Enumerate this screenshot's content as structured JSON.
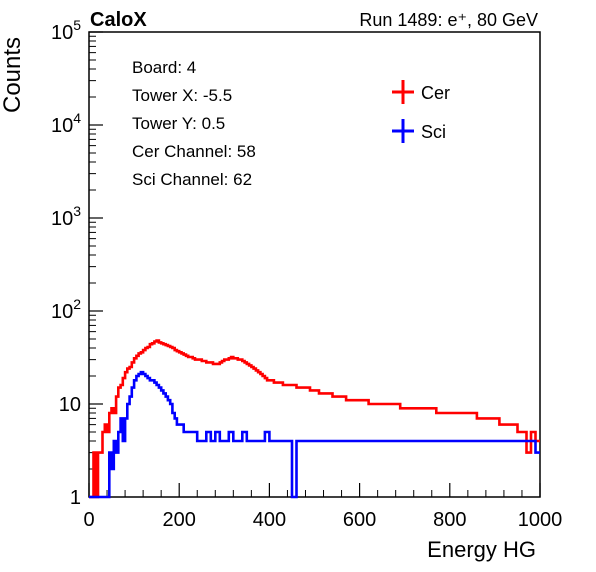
{
  "chart_data": {
    "type": "line",
    "title_left": "CaloX",
    "title_right": "Run 1489: e⁺, 80 GeV",
    "xlabel": "Energy HG",
    "ylabel": "Counts",
    "xlim": [
      0,
      1000
    ],
    "ylim": [
      1,
      100000
    ],
    "y_scale": "log",
    "x_ticks": [
      0,
      200,
      400,
      600,
      800,
      1000
    ],
    "x_tick_labels": [
      "0",
      "200",
      "400",
      "600",
      "800",
      "1000"
    ],
    "y_ticks": [
      1,
      10,
      100,
      1000,
      10000,
      100000
    ],
    "y_tick_labels": [
      {
        "base": "1",
        "exp": ""
      },
      {
        "base": "10",
        "exp": ""
      },
      {
        "base": "10",
        "exp": "2"
      },
      {
        "base": "10",
        "exp": "3"
      },
      {
        "base": "10",
        "exp": "4"
      },
      {
        "base": "10",
        "exp": "5"
      }
    ],
    "info_lines": [
      "Board: 4",
      "Tower X: -5.5",
      "Tower Y: 0.5",
      "Cer Channel: 58",
      "Sci Channel: 62"
    ],
    "legend_position": "top-right",
    "grid": false,
    "series": [
      {
        "name": "Cer",
        "color": "#ff0000",
        "points": [
          [
            0,
            1
          ],
          [
            5,
            1
          ],
          [
            10,
            3
          ],
          [
            15,
            1
          ],
          [
            20,
            3
          ],
          [
            25,
            3
          ],
          [
            30,
            5
          ],
          [
            35,
            6
          ],
          [
            40,
            5
          ],
          [
            45,
            8
          ],
          [
            50,
            9
          ],
          [
            55,
            8
          ],
          [
            60,
            12
          ],
          [
            65,
            15
          ],
          [
            70,
            16
          ],
          [
            75,
            19
          ],
          [
            80,
            22
          ],
          [
            85,
            24
          ],
          [
            90,
            25
          ],
          [
            95,
            28
          ],
          [
            100,
            31
          ],
          [
            105,
            33
          ],
          [
            110,
            35
          ],
          [
            115,
            36
          ],
          [
            120,
            38
          ],
          [
            125,
            40
          ],
          [
            130,
            41
          ],
          [
            135,
            44
          ],
          [
            140,
            45
          ],
          [
            145,
            47
          ],
          [
            150,
            48
          ],
          [
            155,
            46
          ],
          [
            160,
            45
          ],
          [
            165,
            44
          ],
          [
            170,
            43
          ],
          [
            175,
            42
          ],
          [
            180,
            41
          ],
          [
            185,
            40
          ],
          [
            190,
            38
          ],
          [
            195,
            37
          ],
          [
            200,
            36
          ],
          [
            205,
            35
          ],
          [
            210,
            34
          ],
          [
            215,
            33
          ],
          [
            220,
            32
          ],
          [
            225,
            32
          ],
          [
            230,
            31
          ],
          [
            235,
            30
          ],
          [
            240,
            30
          ],
          [
            245,
            30
          ],
          [
            250,
            29
          ],
          [
            255,
            29
          ],
          [
            260,
            28
          ],
          [
            265,
            28
          ],
          [
            270,
            28
          ],
          [
            275,
            27
          ],
          [
            280,
            27
          ],
          [
            285,
            27
          ],
          [
            290,
            28
          ],
          [
            295,
            29
          ],
          [
            300,
            30
          ],
          [
            305,
            30
          ],
          [
            310,
            31
          ],
          [
            315,
            32
          ],
          [
            320,
            31
          ],
          [
            325,
            31
          ],
          [
            330,
            30
          ],
          [
            335,
            30
          ],
          [
            340,
            29
          ],
          [
            345,
            28
          ],
          [
            350,
            27
          ],
          [
            355,
            26
          ],
          [
            360,
            25
          ],
          [
            365,
            24
          ],
          [
            370,
            23
          ],
          [
            375,
            22
          ],
          [
            380,
            21
          ],
          [
            385,
            20
          ],
          [
            390,
            19
          ],
          [
            395,
            18
          ],
          [
            400,
            18
          ],
          [
            410,
            17
          ],
          [
            420,
            17
          ],
          [
            430,
            16
          ],
          [
            440,
            16
          ],
          [
            450,
            16
          ],
          [
            460,
            15
          ],
          [
            470,
            15
          ],
          [
            480,
            15
          ],
          [
            490,
            14
          ],
          [
            500,
            14
          ],
          [
            510,
            13
          ],
          [
            520,
            13
          ],
          [
            530,
            13
          ],
          [
            540,
            12
          ],
          [
            550,
            12
          ],
          [
            560,
            12
          ],
          [
            570,
            11
          ],
          [
            580,
            11
          ],
          [
            590,
            11
          ],
          [
            600,
            11
          ],
          [
            610,
            11
          ],
          [
            620,
            10
          ],
          [
            630,
            10
          ],
          [
            640,
            10
          ],
          [
            650,
            10
          ],
          [
            660,
            10
          ],
          [
            670,
            10
          ],
          [
            680,
            10
          ],
          [
            690,
            9
          ],
          [
            700,
            9
          ],
          [
            710,
            9
          ],
          [
            720,
            9
          ],
          [
            730,
            9
          ],
          [
            740,
            9
          ],
          [
            750,
            9
          ],
          [
            760,
            9
          ],
          [
            770,
            8
          ],
          [
            780,
            8
          ],
          [
            790,
            8
          ],
          [
            800,
            8
          ],
          [
            810,
            8
          ],
          [
            820,
            8
          ],
          [
            830,
            8
          ],
          [
            840,
            8
          ],
          [
            850,
            8
          ],
          [
            860,
            7
          ],
          [
            870,
            7
          ],
          [
            880,
            7
          ],
          [
            890,
            7
          ],
          [
            900,
            7
          ],
          [
            910,
            6
          ],
          [
            920,
            6
          ],
          [
            930,
            6
          ],
          [
            940,
            6
          ],
          [
            950,
            5
          ],
          [
            960,
            5
          ],
          [
            970,
            3
          ],
          [
            980,
            5
          ],
          [
            990,
            4
          ],
          [
            1000,
            4
          ]
        ]
      },
      {
        "name": "Sci",
        "color": "#0000ff",
        "points": [
          [
            0,
            1
          ],
          [
            20,
            1
          ],
          [
            30,
            1
          ],
          [
            40,
            1
          ],
          [
            45,
            3
          ],
          [
            50,
            2
          ],
          [
            55,
            4
          ],
          [
            60,
            3
          ],
          [
            65,
            5
          ],
          [
            70,
            7
          ],
          [
            75,
            4
          ],
          [
            80,
            7
          ],
          [
            85,
            10
          ],
          [
            90,
            12
          ],
          [
            95,
            15
          ],
          [
            100,
            18
          ],
          [
            105,
            20
          ],
          [
            110,
            21
          ],
          [
            115,
            22
          ],
          [
            120,
            21
          ],
          [
            125,
            20
          ],
          [
            130,
            19
          ],
          [
            135,
            18
          ],
          [
            140,
            18
          ],
          [
            145,
            17
          ],
          [
            150,
            16
          ],
          [
            155,
            15
          ],
          [
            160,
            14
          ],
          [
            165,
            13
          ],
          [
            170,
            12
          ],
          [
            175,
            11
          ],
          [
            180,
            10
          ],
          [
            185,
            8
          ],
          [
            190,
            7
          ],
          [
            195,
            6
          ],
          [
            200,
            6
          ],
          [
            210,
            5
          ],
          [
            220,
            5
          ],
          [
            230,
            5
          ],
          [
            240,
            4
          ],
          [
            250,
            4
          ],
          [
            260,
            5
          ],
          [
            270,
            4
          ],
          [
            280,
            5
          ],
          [
            290,
            4
          ],
          [
            300,
            4
          ],
          [
            310,
            5
          ],
          [
            320,
            4
          ],
          [
            330,
            4
          ],
          [
            340,
            5
          ],
          [
            350,
            4
          ],
          [
            360,
            4
          ],
          [
            370,
            4
          ],
          [
            380,
            4
          ],
          [
            390,
            5
          ],
          [
            400,
            4
          ],
          [
            410,
            4
          ],
          [
            420,
            4
          ],
          [
            430,
            4
          ],
          [
            440,
            4
          ],
          [
            450,
            1
          ],
          [
            460,
            4
          ],
          [
            470,
            4
          ],
          [
            480,
            4
          ],
          [
            490,
            4
          ],
          [
            500,
            4
          ],
          [
            510,
            4
          ],
          [
            520,
            4
          ],
          [
            530,
            4
          ],
          [
            540,
            4
          ],
          [
            550,
            4
          ],
          [
            560,
            4
          ],
          [
            570,
            4
          ],
          [
            580,
            4
          ],
          [
            590,
            4
          ],
          [
            600,
            4
          ],
          [
            610,
            4
          ],
          [
            620,
            4
          ],
          [
            630,
            4
          ],
          [
            640,
            4
          ],
          [
            650,
            4
          ],
          [
            660,
            4
          ],
          [
            670,
            4
          ],
          [
            680,
            4
          ],
          [
            690,
            4
          ],
          [
            700,
            4
          ],
          [
            710,
            4
          ],
          [
            720,
            4
          ],
          [
            730,
            4
          ],
          [
            740,
            4
          ],
          [
            750,
            4
          ],
          [
            760,
            4
          ],
          [
            770,
            4
          ],
          [
            780,
            4
          ],
          [
            790,
            4
          ],
          [
            800,
            4
          ],
          [
            810,
            4
          ],
          [
            820,
            4
          ],
          [
            830,
            4
          ],
          [
            840,
            4
          ],
          [
            850,
            4
          ],
          [
            860,
            4
          ],
          [
            870,
            4
          ],
          [
            880,
            4
          ],
          [
            890,
            4
          ],
          [
            900,
            4
          ],
          [
            910,
            4
          ],
          [
            920,
            4
          ],
          [
            930,
            4
          ],
          [
            940,
            4
          ],
          [
            950,
            4
          ],
          [
            960,
            4
          ],
          [
            970,
            4
          ],
          [
            980,
            4
          ],
          [
            990,
            3
          ],
          [
            1000,
            3
          ]
        ]
      }
    ]
  }
}
